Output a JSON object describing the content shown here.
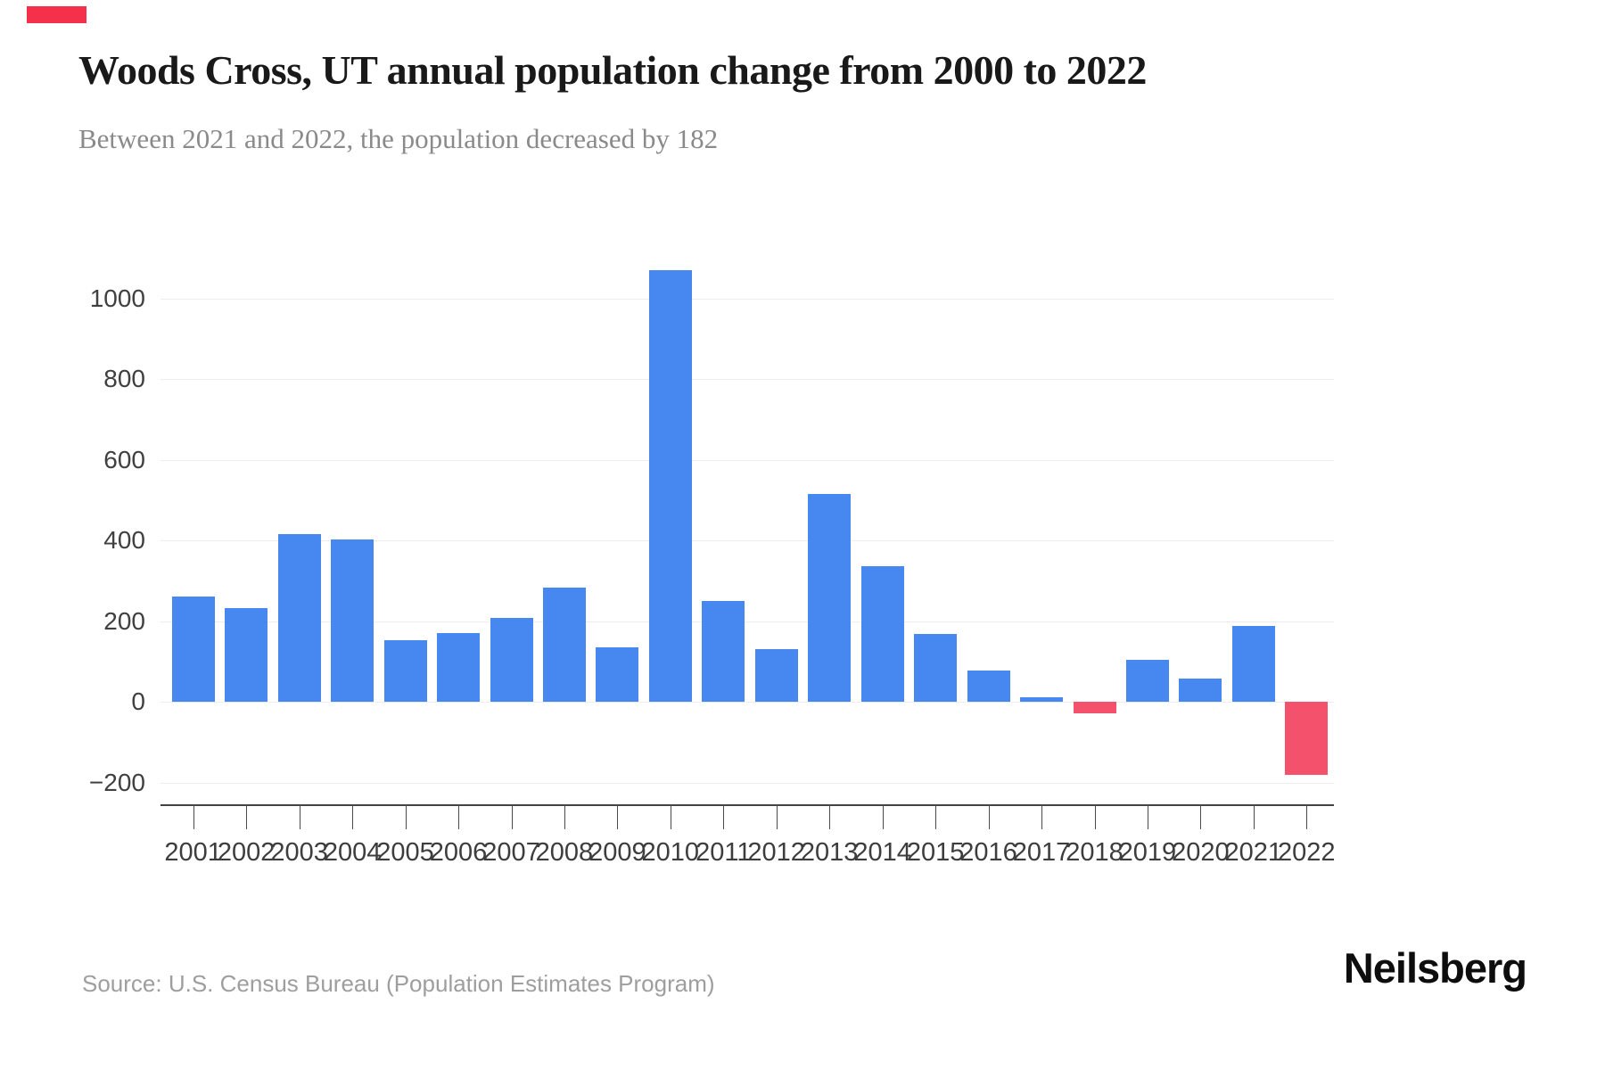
{
  "header": {
    "title": "Woods Cross, UT annual population change from 2000 to 2022",
    "subtitle": "Between 2021 and 2022, the population decreased by 182"
  },
  "chart_data": {
    "type": "bar",
    "title": "Woods Cross, UT annual population change from 2000 to 2022",
    "categories": [
      "2001",
      "2002",
      "2003",
      "2004",
      "2005",
      "2006",
      "2007",
      "2008",
      "2009",
      "2010",
      "2011",
      "2012",
      "2013",
      "2014",
      "2015",
      "2016",
      "2017",
      "2018",
      "2019",
      "2020",
      "2021",
      "2022"
    ],
    "values": [
      260,
      232,
      415,
      402,
      152,
      170,
      208,
      284,
      134,
      1070,
      250,
      131,
      515,
      335,
      167,
      77,
      11,
      -28,
      104,
      57,
      189,
      -182
    ],
    "xlabel": "",
    "ylabel": "",
    "ylim": [
      -254,
      1143
    ],
    "yticks": [
      -200,
      0,
      200,
      400,
      600,
      800,
      1000
    ],
    "grid": true,
    "legend": false,
    "bar_color_positive": "#4687f0",
    "bar_color_negative": "#f4516c"
  },
  "footer": {
    "source": "Source: U.S. Census Bureau (Population Estimates Program)",
    "brand": "Neilsberg"
  },
  "colors": {
    "accent": "#f5304b",
    "gridline": "#ededed",
    "axis": "#424242",
    "tick": "#4a4a4a"
  }
}
